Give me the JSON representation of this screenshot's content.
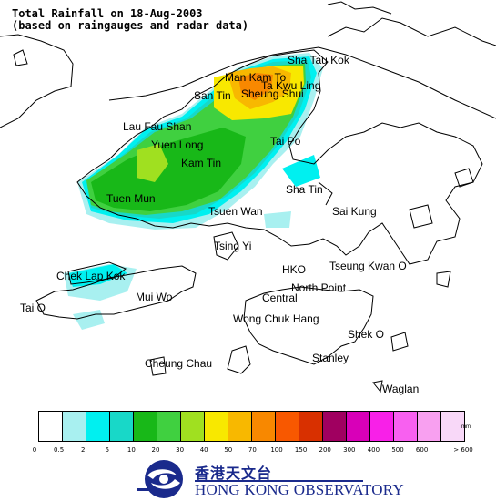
{
  "title": {
    "line1": "Total Rainfall on 18-Aug-2003",
    "line2": "(based on raingauges and radar data)"
  },
  "places": [
    "Sha Tau Kok",
    "Man Kam To",
    "Ta Kwu Ling",
    "San Tin",
    "Sheung Shui",
    "Lau Fau Shan",
    "Yuen Long",
    "Tai Po",
    "Kam Tin",
    "Sha Tin",
    "Tuen Mun",
    "Tsuen Wan",
    "Sai Kung",
    "Tsing Yi",
    "Chek Lap Kok",
    "HKO",
    "Tseung Kwan O",
    "North Point",
    "Mui Wo",
    "Central",
    "Tai O",
    "Wong Chuk Hang",
    "Shek O",
    "Stanley",
    "Cheung Chau",
    "Waglan"
  ],
  "legend": {
    "unit": "mm",
    "colors": [
      "#ffffff",
      "#a8f0f0",
      "#00f0f0",
      "#18d8c8",
      "#18b818",
      "#40d040",
      "#a0e020",
      "#f8e800",
      "#f8b800",
      "#f88800",
      "#f85800",
      "#d83000",
      "#a00060",
      "#d800b8",
      "#f820e8",
      "#f860f0",
      "#f8a0f0",
      "#f8d8f8"
    ],
    "ticks": [
      "0",
      "0.5",
      "2",
      "5",
      "10",
      "20",
      "30",
      "40",
      "50",
      "70",
      "100",
      "150",
      "200",
      "300",
      "400",
      "500",
      "600",
      "> 600"
    ]
  },
  "logo": {
    "chinese": "香港天文台",
    "english": "HONG KONG OBSERVATORY"
  }
}
